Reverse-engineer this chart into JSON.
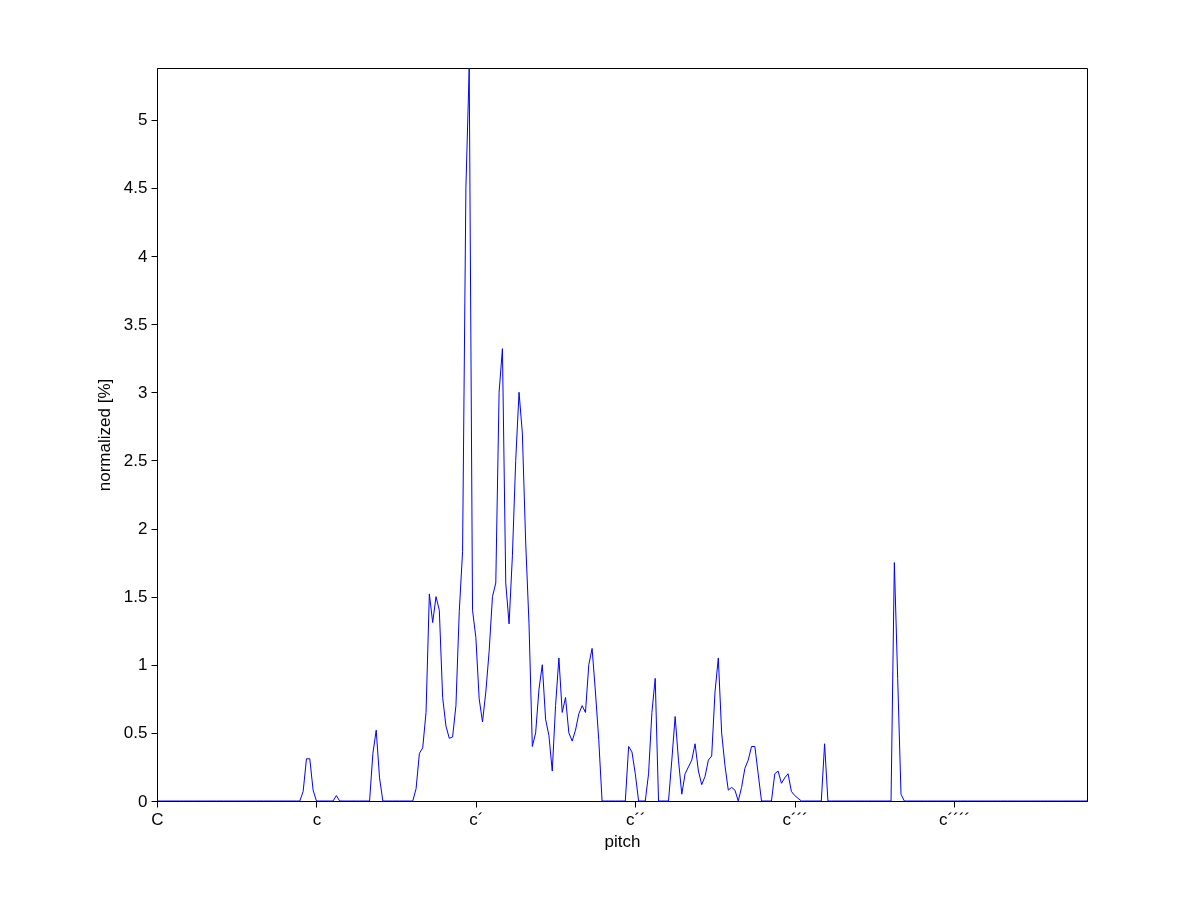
{
  "chart_data": {
    "type": "line",
    "xlabel": "pitch",
    "ylabel": "normalized [%]",
    "color": "#0000ff",
    "ylim": [
      0,
      5.38
    ],
    "yticks": [
      0,
      0.5,
      1,
      1.5,
      2,
      2.5,
      3,
      3.5,
      4,
      4.5,
      5
    ],
    "categories": [
      "C",
      null,
      null,
      null,
      null,
      null,
      null,
      null,
      null,
      null,
      null,
      null,
      null,
      null,
      null,
      null,
      null,
      null,
      null,
      null,
      null,
      null,
      null,
      null,
      null,
      null,
      null,
      null,
      null,
      null,
      null,
      null,
      null,
      null,
      null,
      null,
      null,
      null,
      null,
      null,
      null,
      null,
      null,
      null,
      null,
      null,
      null,
      null,
      "c",
      null,
      null,
      null,
      null,
      null,
      null,
      null,
      null,
      null,
      null,
      null,
      null,
      null,
      null,
      null,
      null,
      null,
      null,
      null,
      null,
      null,
      null,
      null,
      null,
      null,
      null,
      null,
      null,
      null,
      null,
      null,
      null,
      null,
      null,
      null,
      null,
      null,
      null,
      null,
      null,
      null,
      null,
      null,
      null,
      null,
      null,
      null,
      "c´",
      null,
      null,
      null,
      null,
      null,
      null,
      null,
      null,
      null,
      null,
      null,
      null,
      null,
      null,
      null,
      null,
      null,
      null,
      null,
      null,
      null,
      null,
      null,
      null,
      null,
      null,
      null,
      null,
      null,
      null,
      null,
      null,
      null,
      null,
      null,
      null,
      null,
      null,
      null,
      null,
      null,
      null,
      null,
      null,
      null,
      null,
      null,
      "c´´",
      null,
      null,
      null,
      null,
      null,
      null,
      null,
      null,
      null,
      null,
      null,
      null,
      null,
      null,
      null,
      null,
      null,
      null,
      null,
      null,
      null,
      null,
      null,
      null,
      null,
      null,
      null,
      null,
      null,
      null,
      null,
      null,
      null,
      null,
      null,
      null,
      null,
      null,
      null,
      null,
      null,
      null,
      null,
      null,
      null,
      null,
      null,
      "c´´´",
      null,
      null,
      null,
      null,
      null,
      null,
      null,
      null,
      null,
      null,
      null,
      null,
      null,
      null,
      null,
      null,
      null,
      null,
      null,
      null,
      null,
      null,
      null,
      null,
      null,
      null,
      null,
      null,
      null,
      null,
      null,
      null,
      null,
      null,
      null,
      null,
      null,
      null,
      null,
      null,
      null,
      null,
      null,
      null,
      null,
      null,
      null,
      "c´´´´",
      null,
      null,
      null,
      null,
      null,
      null,
      null,
      null,
      null,
      null,
      null,
      null,
      null,
      null,
      null,
      null,
      null,
      null,
      null,
      null,
      null,
      null,
      null,
      null,
      null,
      null,
      null,
      null,
      null,
      null,
      null,
      null,
      null,
      null,
      null,
      null,
      null,
      null,
      null,
      null
    ],
    "values": [
      0,
      0,
      0,
      0,
      0,
      0,
      0,
      0,
      0,
      0,
      0,
      0,
      0,
      0,
      0,
      0,
      0,
      0,
      0,
      0,
      0,
      0,
      0,
      0,
      0,
      0,
      0,
      0,
      0,
      0,
      0,
      0,
      0,
      0,
      0,
      0,
      0,
      0,
      0,
      0,
      0,
      0,
      0,
      0,
      0.07,
      0.31,
      0.31,
      0.08,
      0,
      0,
      0,
      0,
      0,
      0,
      0.04,
      0,
      0,
      0,
      0,
      0,
      0,
      0,
      0,
      0,
      0,
      0.35,
      0.52,
      0.17,
      0,
      0,
      0,
      0,
      0,
      0,
      0,
      0,
      0,
      0,
      0.09,
      0.35,
      0.39,
      0.65,
      1.52,
      1.31,
      1.5,
      1.4,
      0.76,
      0.55,
      0.46,
      0.47,
      0.7,
      1.39,
      1.83,
      4.5,
      5.38,
      1.4,
      1.2,
      0.75,
      0.58,
      0.8,
      1.1,
      1.5,
      1.6,
      3.0,
      3.32,
      1.6,
      1.3,
      1.8,
      2.5,
      3.0,
      2.7,
      1.9,
      1.3,
      0.4,
      0.5,
      0.82,
      1.0,
      0.6,
      0.48,
      0.22,
      0.7,
      1.05,
      0.65,
      0.76,
      0.5,
      0.44,
      0.52,
      0.64,
      0.7,
      0.65,
      1.0,
      1.12,
      0.8,
      0.45,
      0,
      0,
      0,
      0,
      0,
      0,
      0,
      0,
      0.4,
      0.36,
      0.2,
      0,
      0,
      0,
      0.2,
      0.65,
      0.9,
      0,
      0,
      0,
      0,
      0.3,
      0.62,
      0.3,
      0.05,
      0.2,
      0.25,
      0.3,
      0.42,
      0.22,
      0.12,
      0.18,
      0.3,
      0.33,
      0.8,
      1.05,
      0.5,
      0.26,
      0.08,
      0.1,
      0.08,
      0,
      0.1,
      0.24,
      0.3,
      0.4,
      0.4,
      0.2,
      0,
      0,
      0,
      0,
      0.2,
      0.22,
      0.13,
      0.17,
      0.2,
      0.07,
      0.04,
      0.02,
      0,
      0,
      0,
      0,
      0,
      0,
      0,
      0.42,
      0,
      0,
      0,
      0,
      0,
      0,
      0,
      0,
      0,
      0,
      0,
      0,
      0,
      0,
      0,
      0,
      0,
      0,
      0,
      0,
      1.75,
      0.9,
      0.05,
      0,
      0,
      0,
      0,
      0,
      0,
      0,
      0,
      0,
      0,
      0,
      0,
      0,
      0,
      0,
      0,
      0,
      0,
      0,
      0,
      0,
      0,
      0,
      0,
      0,
      0,
      0,
      0,
      0,
      0,
      0,
      0,
      0,
      0,
      0,
      0,
      0,
      0,
      0,
      0,
      0,
      0,
      0,
      0,
      0,
      0,
      0,
      0,
      0,
      0,
      0,
      0,
      0,
      0,
      0,
      0
    ]
  }
}
